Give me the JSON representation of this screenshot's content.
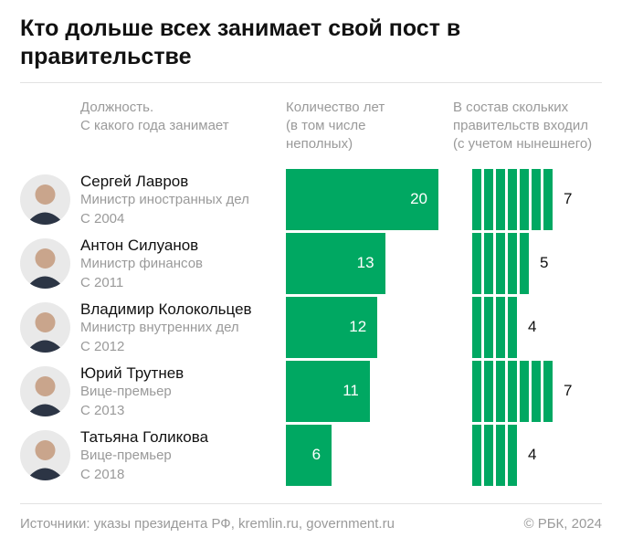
{
  "title": "Кто дольше всех занимает свой пост в правительстве",
  "headers": {
    "position": "Должность.\nС какого года занимает",
    "years": "Количество лет\n(в том числе\nнеполных)",
    "governments": "В состав скольких\nправительств входил\n(с учетом нынешнего)"
  },
  "chart_data": {
    "type": "bar",
    "categories": [
      "Сергей Лавров",
      "Антон Силуанов",
      "Владимир Колокольцев",
      "Юрий Трутнев",
      "Татьяна Голикова"
    ],
    "series": [
      {
        "name": "Количество лет (в том числе неполных)",
        "values": [
          20,
          13,
          12,
          11,
          6
        ]
      },
      {
        "name": "В состав скольких правительств входил (с учетом нынешнего)",
        "values": [
          7,
          5,
          4,
          7,
          4
        ]
      }
    ],
    "color": "#00a862"
  },
  "rows": [
    {
      "name": "Сергей Лавров",
      "role": "Министр иностранных дел",
      "since": "С 2004",
      "years": "20",
      "govs": "7"
    },
    {
      "name": "Антон Силуанов",
      "role": "Министр финансов",
      "since": "С 2011",
      "years": "13",
      "govs": "5"
    },
    {
      "name": "Владимир Колокольцев",
      "role": "Министр внутренних дел",
      "since": "С 2012",
      "years": "12",
      "govs": "4"
    },
    {
      "name": "Юрий Трутнев",
      "role": "Вице-премьер",
      "since": "С 2013",
      "years": "11",
      "govs": "7"
    },
    {
      "name": "Татьяна Голикова",
      "role": "Вице-премьер",
      "since": "С 2018",
      "years": "6",
      "govs": "4"
    }
  ],
  "footer": {
    "source": "Источники: указы президента РФ, kremlin.ru, government.ru",
    "copyright": "© РБК, 2024"
  }
}
